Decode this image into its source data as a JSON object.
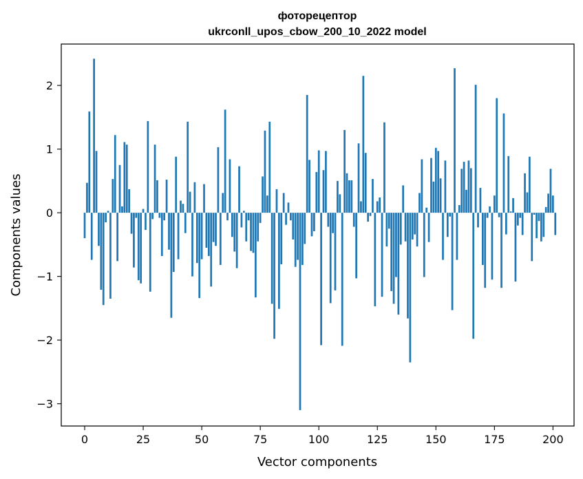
{
  "chart_data": {
    "type": "bar",
    "title_line1": "фоторецептор",
    "title_line2": "ukrconll_upos_cbow_200_10_2022 model",
    "xlabel": "Vector components",
    "ylabel": "Components values",
    "xlim": [
      -10,
      209
    ],
    "ylim": [
      -3.35,
      2.65
    ],
    "xticks": [
      0,
      25,
      50,
      75,
      100,
      125,
      150,
      175,
      200
    ],
    "xtick_labels": [
      "0",
      "25",
      "50",
      "75",
      "100",
      "125",
      "150",
      "175",
      "200"
    ],
    "yticks": [
      -3,
      -2,
      -1,
      0,
      1,
      2
    ],
    "ytick_labels": [
      "−3",
      "−2",
      "−1",
      "0",
      "1",
      "2"
    ],
    "bar_color": "#1f77b4",
    "grid": false,
    "values": [
      -0.4,
      0.47,
      1.59,
      -0.74,
      2.42,
      0.97,
      -0.52,
      -1.21,
      -1.45,
      -0.15,
      0.03,
      -1.35,
      0.53,
      1.22,
      -0.76,
      0.75,
      0.1,
      1.11,
      1.07,
      0.37,
      -0.33,
      -0.86,
      -0.08,
      -1.06,
      -1.11,
      0.06,
      -0.27,
      1.44,
      -1.24,
      -0.1,
      1.07,
      0.51,
      -0.08,
      -0.68,
      -0.12,
      0.52,
      -0.58,
      -1.65,
      -0.93,
      0.88,
      -0.73,
      0.19,
      0.14,
      -0.32,
      1.43,
      0.33,
      -1.0,
      0.48,
      -0.79,
      -1.34,
      -0.73,
      0.45,
      -0.55,
      -0.68,
      -1.16,
      -0.46,
      -0.52,
      1.03,
      -0.82,
      0.31,
      1.62,
      -0.12,
      0.84,
      -0.38,
      -0.61,
      -0.87,
      0.73,
      -0.23,
      0.03,
      -0.45,
      -0.12,
      -0.6,
      -0.63,
      -1.33,
      -0.45,
      -0.16,
      0.57,
      1.29,
      0.27,
      1.43,
      -1.43,
      -1.98,
      0.37,
      -1.51,
      -0.81,
      0.31,
      -0.19,
      0.16,
      -0.12,
      -0.42,
      -0.85,
      -0.74,
      -3.1,
      -0.82,
      -0.49,
      1.85,
      0.83,
      -0.37,
      -0.29,
      0.64,
      0.98,
      -2.08,
      0.67,
      0.97,
      -0.22,
      -1.42,
      -0.32,
      -1.22,
      0.5,
      0.29,
      -2.09,
      1.3,
      0.62,
      0.51,
      0.51,
      -0.22,
      -1.03,
      1.09,
      0.18,
      2.15,
      0.94,
      -0.14,
      -0.05,
      0.53,
      -1.47,
      0.18,
      0.24,
      -1.32,
      1.42,
      -0.53,
      -0.25,
      -1.23,
      -1.43,
      -1.01,
      -1.6,
      -0.5,
      0.43,
      -0.45,
      -1.66,
      -2.35,
      -0.42,
      -0.34,
      -0.53,
      0.31,
      0.84,
      -1.01,
      0.08,
      -0.46,
      0.86,
      0.49,
      1.02,
      0.97,
      0.54,
      -0.74,
      0.82,
      -0.38,
      -0.06,
      -1.53,
      2.27,
      -0.74,
      0.12,
      0.69,
      0.8,
      0.36,
      0.82,
      0.7,
      -1.98,
      2.01,
      -0.23,
      0.39,
      -0.82,
      -1.18,
      -0.08,
      0.1,
      -1.05,
      0.27,
      1.8,
      -0.07,
      -1.18,
      1.56,
      -0.34,
      0.89,
      0.02,
      0.23,
      -1.08,
      -0.2,
      -0.08,
      -0.35,
      0.62,
      0.32,
      0.88,
      -0.76,
      -0.03,
      -0.4,
      -0.13,
      -0.45,
      -0.38,
      0.09,
      0.3,
      0.69,
      0.27,
      -0.35
    ]
  }
}
